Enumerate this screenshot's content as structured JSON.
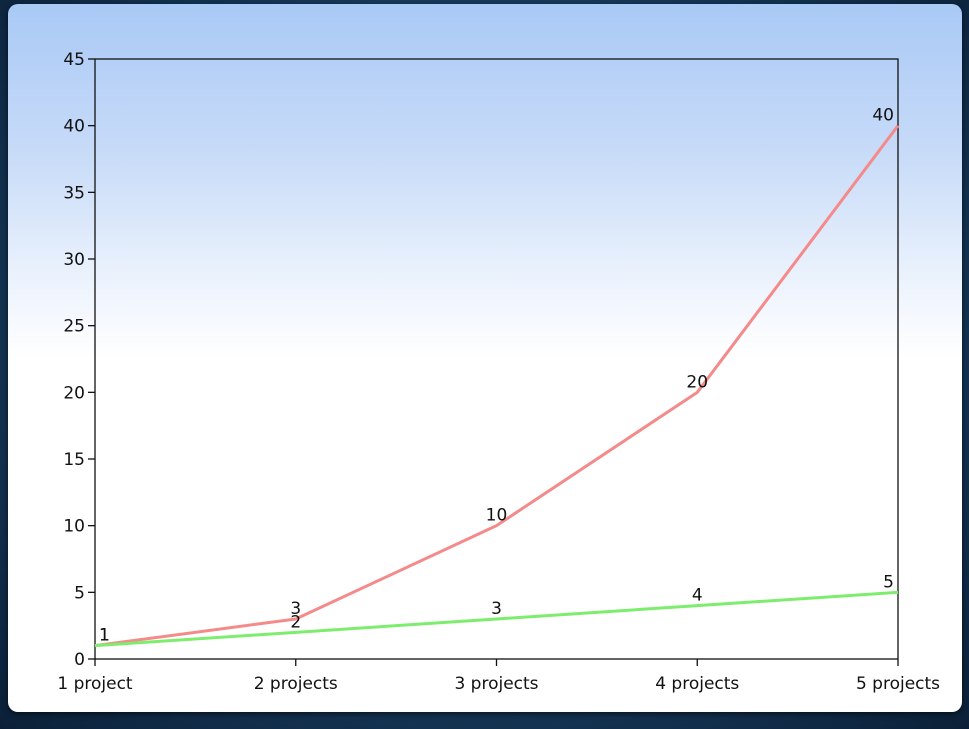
{
  "chart_data": {
    "type": "line",
    "categories": [
      "1 project",
      "2 projects",
      "3 projects",
      "4 projects",
      "5 projects"
    ],
    "series": [
      {
        "values": [
          1,
          3,
          10,
          20,
          40
        ],
        "color": "#f48a8a"
      },
      {
        "values": [
          1,
          2,
          3,
          4,
          5
        ],
        "color": "#7ced6c"
      }
    ],
    "ylim": [
      0,
      45
    ],
    "yticks": [
      0,
      5,
      10,
      15,
      20,
      25,
      30,
      35,
      40,
      45
    ],
    "grid": false,
    "data_labels": true
  }
}
